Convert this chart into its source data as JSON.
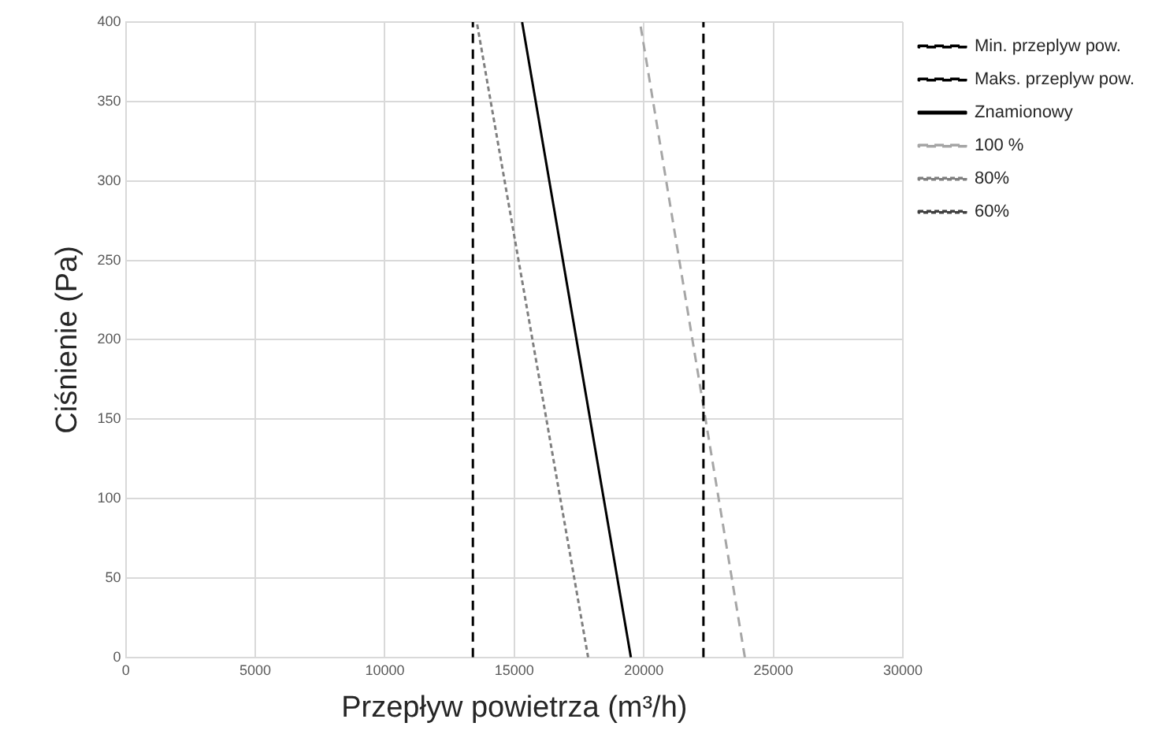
{
  "chart_data": {
    "type": "line",
    "xlabel": "Przepływ powietrza (m³/h)",
    "ylabel": "Ciśnienie (Pa)",
    "xlim": [
      0,
      30000
    ],
    "xticks": [
      0,
      5000,
      10000,
      15000,
      20000,
      25000,
      30000
    ],
    "ylim": [
      0,
      400
    ],
    "yticks": [
      0,
      50,
      100,
      150,
      200,
      250,
      300,
      350,
      400
    ],
    "grid": true,
    "legend": "right",
    "marker": "none",
    "series": [
      {
        "name": "Min. przeplyw pow.",
        "color": "#000000",
        "line_style": "dashed",
        "x": [
          13400,
          13400
        ],
        "values": [
          0,
          400
        ]
      },
      {
        "name": "Maks. przeplyw pow.",
        "color": "#000000",
        "line_style": "dashed",
        "x": [
          22300,
          22300
        ],
        "values": [
          0,
          400
        ]
      },
      {
        "name": "Znamionowy",
        "color": "#000000",
        "line_style": "solid",
        "x": [
          19500,
          15300
        ],
        "values": [
          0,
          400
        ]
      },
      {
        "name": "100 %",
        "color": "#a6a6a6",
        "line_style": "dashed",
        "x": [
          23900,
          19850
        ],
        "values": [
          0,
          400
        ]
      },
      {
        "name": "80%",
        "color": "#7f7f7f",
        "line_style": "dotted",
        "x": [
          17850,
          13550
        ],
        "values": [
          0,
          400
        ]
      },
      {
        "name": "60%",
        "color": "#404040",
        "line_style": "dotted"
      }
    ]
  }
}
